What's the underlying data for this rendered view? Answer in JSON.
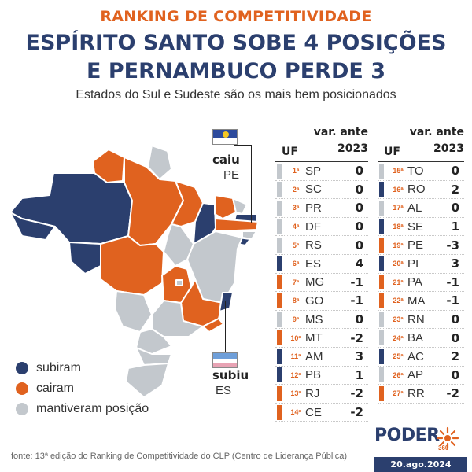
{
  "header": {
    "kicker": "RANKING DE COMPETITIVIDADE",
    "headline_line1": "ESPÍRITO SANTO SOBE 4 POSIÇÕES",
    "headline_line2": "E PERNAMBUCO PERDE 3",
    "subtitle": "Estados do Sul e Sudeste são os mais bem posicionados"
  },
  "colors": {
    "up": "#2b3f6e",
    "down": "#e0621f",
    "same": "#c3c8cd",
    "accent": "#e0621f"
  },
  "callouts": {
    "pe": {
      "label": "caiu",
      "uf": "PE"
    },
    "es": {
      "label": "subiu",
      "uf": "ES"
    }
  },
  "legend": [
    {
      "label": "subiram",
      "status": "up"
    },
    {
      "label": "cairam",
      "status": "down"
    },
    {
      "label": "mantiveram posição",
      "status": "same"
    }
  ],
  "table": {
    "col_uf": "UF",
    "col_var_line1": "var. ante",
    "col_var_line2": "2023",
    "rows": [
      {
        "rank": "1ª",
        "uf": "SP",
        "var": "0",
        "status": "same"
      },
      {
        "rank": "2ª",
        "uf": "SC",
        "var": "0",
        "status": "same"
      },
      {
        "rank": "3ª",
        "uf": "PR",
        "var": "0",
        "status": "same"
      },
      {
        "rank": "4ª",
        "uf": "DF",
        "var": "0",
        "status": "same"
      },
      {
        "rank": "5ª",
        "uf": "RS",
        "var": "0",
        "status": "same"
      },
      {
        "rank": "6ª",
        "uf": "ES",
        "var": "4",
        "status": "up"
      },
      {
        "rank": "7ª",
        "uf": "MG",
        "var": "-1",
        "status": "down"
      },
      {
        "rank": "8ª",
        "uf": "GO",
        "var": "-1",
        "status": "down"
      },
      {
        "rank": "9ª",
        "uf": "MS",
        "var": "0",
        "status": "same"
      },
      {
        "rank": "10ª",
        "uf": "MT",
        "var": "-2",
        "status": "down"
      },
      {
        "rank": "11ª",
        "uf": "AM",
        "var": "3",
        "status": "up"
      },
      {
        "rank": "12ª",
        "uf": "PB",
        "var": "1",
        "status": "up"
      },
      {
        "rank": "13ª",
        "uf": "RJ",
        "var": "-2",
        "status": "down"
      },
      {
        "rank": "14ª",
        "uf": "CE",
        "var": "-2",
        "status": "down"
      },
      {
        "rank": "15ª",
        "uf": "TO",
        "var": "0",
        "status": "same"
      },
      {
        "rank": "16ª",
        "uf": "RO",
        "var": "2",
        "status": "up"
      },
      {
        "rank": "17ª",
        "uf": "AL",
        "var": "0",
        "status": "same"
      },
      {
        "rank": "18ª",
        "uf": "SE",
        "var": "1",
        "status": "up"
      },
      {
        "rank": "19ª",
        "uf": "PE",
        "var": "-3",
        "status": "down"
      },
      {
        "rank": "20ª",
        "uf": "PI",
        "var": "3",
        "status": "up"
      },
      {
        "rank": "21ª",
        "uf": "PA",
        "var": "-1",
        "status": "down"
      },
      {
        "rank": "22ª",
        "uf": "MA",
        "var": "-1",
        "status": "down"
      },
      {
        "rank": "23ª",
        "uf": "RN",
        "var": "0",
        "status": "same"
      },
      {
        "rank": "24ª",
        "uf": "BA",
        "var": "0",
        "status": "same"
      },
      {
        "rank": "25ª",
        "uf": "AC",
        "var": "2",
        "status": "up"
      },
      {
        "rank": "26ª",
        "uf": "AP",
        "var": "0",
        "status": "same"
      },
      {
        "rank": "27ª",
        "uf": "RR",
        "var": "-2",
        "status": "down"
      }
    ]
  },
  "footer": {
    "source": "fonte: 13ª edição do Ranking de Competitividade do CLP (Centro de Liderança Pública)",
    "logo": "PODER",
    "logo_sub": "360",
    "date": "20.ago.2024"
  }
}
